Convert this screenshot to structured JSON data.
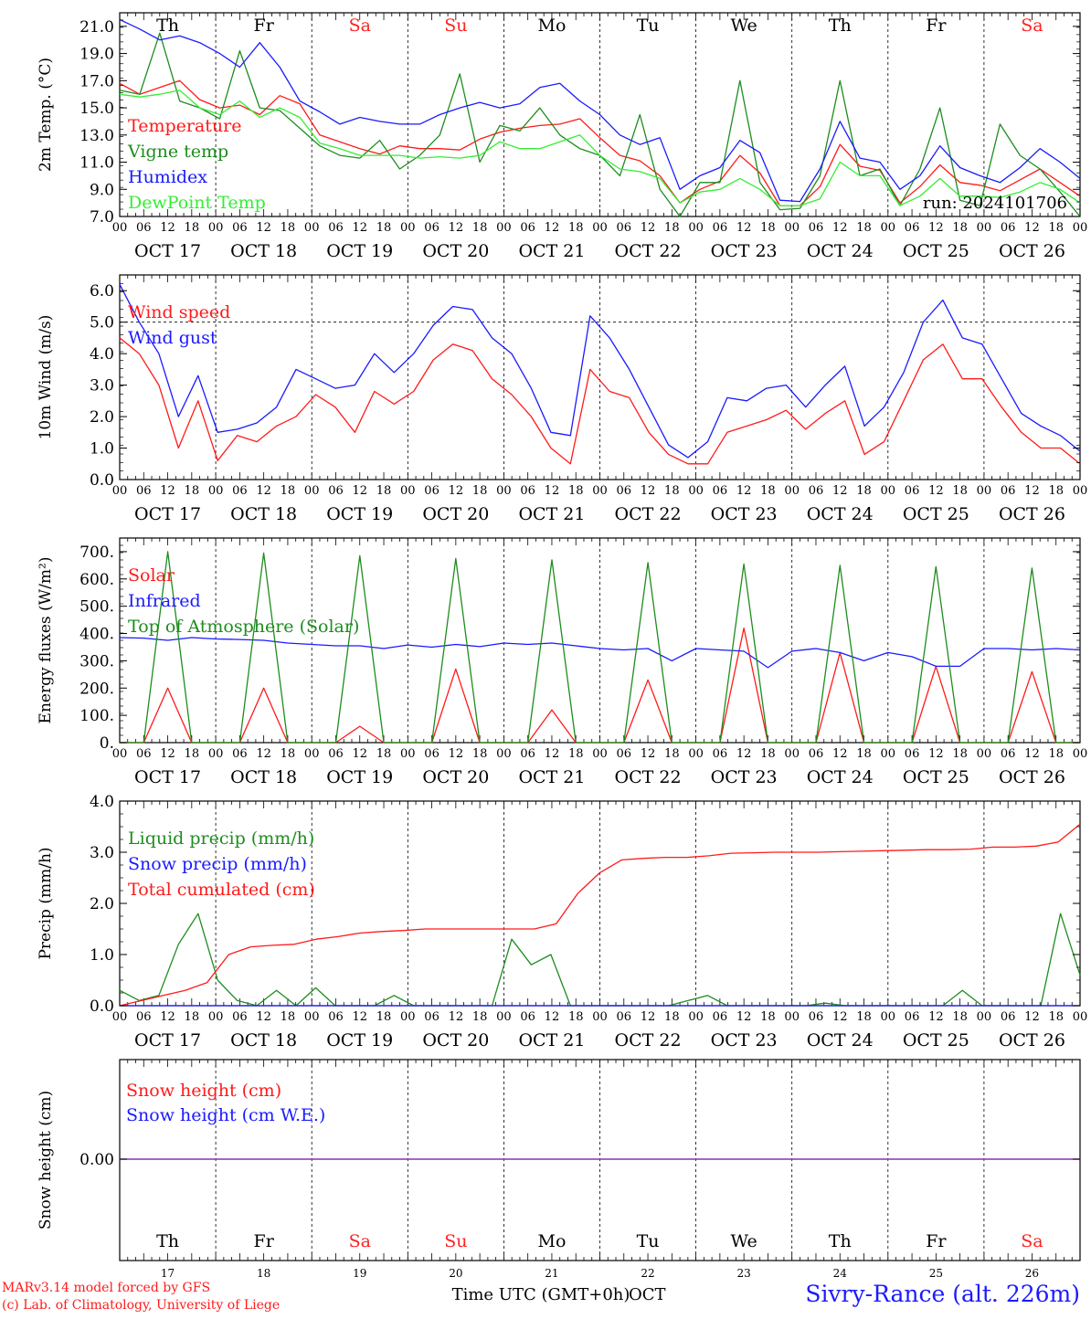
{
  "days": {
    "day_names": [
      "Th",
      "Fr",
      "Sa",
      "Su",
      "Mo",
      "Tu",
      "We",
      "Th",
      "Fr",
      "Sa"
    ],
    "weekend_flags": [
      false,
      false,
      true,
      true,
      false,
      false,
      false,
      false,
      false,
      true
    ],
    "date_labels": [
      "OCT 17",
      "OCT 18",
      "OCT 19",
      "OCT 20",
      "OCT 21",
      "OCT 22",
      "OCT 23",
      "OCT 24",
      "OCT 25",
      "OCT 26"
    ],
    "day_numbers": [
      "17",
      "18",
      "19",
      "20",
      "21",
      "22",
      "23",
      "24",
      "25",
      "26"
    ],
    "hour_labels": [
      "00",
      "06",
      "12",
      "18"
    ],
    "final_hour_label": "00"
  },
  "colors": {
    "red": "#ff1a1a",
    "green": "#1e8c1e",
    "blue": "#1a1aff",
    "lightgreen": "#33ee33",
    "purple": "#8833aa",
    "weekend": "#ff2222",
    "text": "#000000"
  },
  "chart_data": [
    {
      "type": "line",
      "id": "temp",
      "ylabel": "2m Temp. (°C)",
      "ylim": [
        7.0,
        22.0
      ],
      "yticks": [
        "7.0",
        "9.0",
        "11.0",
        "13.0",
        "15.0",
        "17.0",
        "19.0",
        "21.0"
      ],
      "annotation": "run: 2024101706",
      "x_unit": "hours since OCT 17 00 UTC (every 6 h)",
      "series": [
        {
          "name": "Temperature",
          "color": "#ff1a1a",
          "values": [
            16.8,
            16.0,
            16.5,
            17.0,
            15.6,
            15.0,
            15.2,
            14.5,
            15.9,
            15.3,
            13.0,
            12.5,
            12.0,
            11.6,
            12.2,
            12.0,
            12.0,
            11.9,
            12.7,
            13.2,
            13.5,
            13.7,
            13.8,
            14.2,
            12.8,
            11.5,
            11.1,
            10.0,
            8.0,
            9.0,
            9.6,
            11.5,
            10.2,
            7.8,
            7.8,
            9.2,
            12.3,
            10.7,
            10.4,
            8.0,
            9.2,
            10.8,
            9.5,
            9.3,
            8.9,
            9.7,
            10.5,
            9.5,
            8.5
          ]
        },
        {
          "name": "Vigne temp",
          "color": "#1e8c1e",
          "values": [
            16.3,
            16.0,
            20.5,
            15.5,
            15.0,
            14.2,
            19.2,
            15.0,
            14.8,
            13.5,
            12.2,
            11.5,
            11.3,
            12.6,
            10.5,
            11.5,
            13.0,
            17.5,
            11.0,
            13.7,
            13.3,
            15.0,
            13.0,
            12.0,
            11.5,
            10.0,
            14.5,
            9.0,
            6.5,
            9.5,
            9.5,
            17.0,
            9.5,
            7.5,
            7.6,
            10.0,
            17.0,
            10.0,
            10.5,
            7.8,
            10.5,
            15.0,
            8.2,
            7.8,
            13.8,
            11.5,
            10.5,
            8.8,
            7.0
          ]
        },
        {
          "name": "Humidex",
          "color": "#1a1aff",
          "values": [
            21.5,
            20.8,
            20.0,
            20.3,
            19.8,
            19.0,
            18.0,
            19.8,
            18.0,
            15.5,
            14.7,
            13.8,
            14.3,
            14.0,
            13.8,
            13.8,
            14.5,
            15.0,
            15.4,
            15.0,
            15.3,
            16.5,
            16.8,
            15.5,
            14.5,
            13.0,
            12.3,
            12.8,
            9.0,
            10.0,
            10.6,
            12.6,
            11.7,
            8.2,
            8.1,
            10.5,
            14.0,
            11.3,
            11.0,
            9.0,
            10.0,
            12.2,
            10.6,
            10.0,
            9.5,
            10.6,
            12.0,
            11.0,
            9.8
          ]
        },
        {
          "name": "DewPoint Temp",
          "color": "#33ee33",
          "values": [
            16.0,
            15.8,
            16.0,
            16.3,
            15.0,
            14.5,
            15.5,
            14.3,
            15.0,
            14.3,
            12.4,
            12.0,
            11.5,
            11.5,
            11.5,
            11.3,
            11.4,
            11.3,
            11.5,
            12.5,
            12.0,
            12.0,
            12.5,
            13.0,
            11.5,
            10.5,
            10.3,
            9.8,
            8.0,
            8.8,
            9.0,
            9.8,
            9.0,
            7.8,
            7.8,
            8.3,
            11.0,
            10.0,
            10.0,
            7.8,
            8.5,
            9.8,
            8.5,
            8.5,
            8.4,
            8.8,
            9.5,
            9.0,
            8.0
          ]
        }
      ]
    },
    {
      "type": "line",
      "id": "wind",
      "ylabel": "10m Wind (m/s)",
      "ylim": [
        0.0,
        6.5
      ],
      "yticks": [
        "0.0",
        "1.0",
        "2.0",
        "3.0",
        "4.0",
        "5.0",
        "6.0"
      ],
      "reference_line": 5.0,
      "x_unit": "hours since OCT 17 00 UTC (every 6 h)",
      "series": [
        {
          "name": "Wind speed",
          "color": "#ff1a1a",
          "values": [
            4.5,
            4.0,
            3.0,
            1.0,
            2.5,
            0.6,
            1.4,
            1.2,
            1.7,
            2.0,
            2.7,
            2.3,
            1.5,
            2.8,
            2.4,
            2.8,
            3.8,
            4.3,
            4.1,
            3.2,
            2.7,
            2.0,
            1.0,
            0.5,
            3.5,
            2.8,
            2.6,
            1.5,
            0.8,
            0.5,
            0.5,
            1.5,
            1.7,
            1.9,
            2.2,
            1.6,
            2.1,
            2.5,
            0.8,
            1.2,
            2.5,
            3.8,
            4.3,
            3.2,
            3.2,
            2.3,
            1.5,
            1.0,
            1.0,
            0.5
          ]
        },
        {
          "name": "Wind gust",
          "color": "#1a1aff",
          "values": [
            6.2,
            5.0,
            4.0,
            2.0,
            3.3,
            1.5,
            1.6,
            1.8,
            2.3,
            3.5,
            3.2,
            2.9,
            3.0,
            4.0,
            3.4,
            4.0,
            4.9,
            5.5,
            5.4,
            4.5,
            4.0,
            2.9,
            1.5,
            1.4,
            5.2,
            4.5,
            3.5,
            2.3,
            1.1,
            0.7,
            1.2,
            2.6,
            2.5,
            2.9,
            3.0,
            2.3,
            3.0,
            3.6,
            1.7,
            2.3,
            3.4,
            5.0,
            5.7,
            4.5,
            4.3,
            3.2,
            2.1,
            1.7,
            1.4,
            0.9
          ]
        }
      ]
    },
    {
      "type": "line",
      "id": "energy",
      "ylabel": "Energy fluxes (W/m²)",
      "ylim": [
        0,
        750
      ],
      "yticks": [
        "0.",
        "100.",
        "200.",
        "300.",
        "400.",
        "500.",
        "600.",
        "700."
      ],
      "x_unit": "hours since OCT 17 00 UTC (every 6 h)",
      "series": [
        {
          "name": "Solar",
          "color": "#ff1a1a",
          "values": [
            0,
            0,
            200,
            0,
            0,
            0,
            200,
            0,
            0,
            0,
            60,
            0,
            0,
            0,
            270,
            0,
            0,
            0,
            120,
            0,
            0,
            0,
            230,
            0,
            0,
            0,
            420,
            0,
            0,
            0,
            330,
            0,
            0,
            0,
            280,
            0,
            0,
            0,
            260,
            0,
            0
          ]
        },
        {
          "name": "Infrared",
          "color": "#1a1aff",
          "values": [
            385,
            383,
            375,
            385,
            380,
            378,
            375,
            365,
            360,
            355,
            355,
            345,
            358,
            350,
            360,
            352,
            365,
            360,
            365,
            355,
            345,
            340,
            345,
            300,
            345,
            340,
            335,
            275,
            335,
            345,
            330,
            300,
            330,
            315,
            280,
            280,
            345,
            345,
            340,
            345,
            340
          ]
        },
        {
          "name": "Top of Atmosphere (Solar)",
          "color": "#1e8c1e",
          "values": [
            0,
            0,
            700,
            0,
            0,
            0,
            695,
            0,
            0,
            0,
            685,
            0,
            0,
            0,
            675,
            0,
            0,
            0,
            670,
            0,
            0,
            0,
            660,
            0,
            0,
            0,
            655,
            0,
            0,
            0,
            650,
            0,
            0,
            0,
            645,
            0,
            0,
            0,
            640,
            0,
            0
          ]
        }
      ]
    },
    {
      "type": "line",
      "id": "precip",
      "ylabel": "Precip (mm/h)",
      "ylim": [
        0.0,
        4.0
      ],
      "yticks": [
        "0.0",
        "1.0",
        "2.0",
        "3.0",
        "4.0"
      ],
      "x_unit": "hours since OCT 17 00 UTC (every 6 h)",
      "series": [
        {
          "name": "Liquid precip (mm/h)",
          "color": "#1e8c1e",
          "values": [
            0.3,
            0.1,
            0.2,
            1.2,
            1.8,
            0.5,
            0.1,
            0.0,
            0.3,
            0.0,
            0.35,
            0.0,
            0.0,
            0.0,
            0.2,
            0.0,
            0.0,
            0.0,
            0.0,
            0.0,
            1.3,
            0.8,
            1.0,
            0.0,
            0.0,
            0.0,
            0.0,
            0.0,
            0.0,
            0.1,
            0.2,
            0.0,
            0.0,
            0.0,
            0.0,
            0.0,
            0.05,
            0.0,
            0.0,
            0.0,
            0.0,
            0.0,
            0.0,
            0.3,
            0.0,
            0.0,
            0.0,
            0.0,
            1.8,
            0.6
          ]
        },
        {
          "name": "Snow precip (mm/h)",
          "color": "#1a1aff",
          "values": [
            0.0,
            0.0,
            0.0,
            0.0,
            0.0,
            0.0,
            0.0,
            0.0,
            0.0,
            0.0,
            0.0,
            0.0,
            0.0,
            0.0,
            0.0,
            0.0,
            0.0,
            0.0,
            0.0,
            0.0,
            0.0,
            0.0,
            0.0,
            0.0,
            0.0,
            0.0,
            0.0,
            0.0,
            0.0,
            0.0,
            0.0,
            0.0,
            0.0,
            0.0,
            0.0,
            0.0,
            0.0,
            0.0,
            0.0,
            0.0,
            0.0,
            0.0,
            0.0,
            0.0,
            0.0,
            0.0,
            0.0,
            0.0,
            0.0,
            0.0
          ]
        },
        {
          "name": "Total cumulated (cm)",
          "color": "#ff1a1a",
          "values": [
            0.0,
            0.1,
            0.2,
            0.3,
            0.45,
            1.0,
            1.15,
            1.18,
            1.2,
            1.3,
            1.35,
            1.42,
            1.45,
            1.47,
            1.5,
            1.5,
            1.5,
            1.5,
            1.5,
            1.5,
            1.6,
            2.2,
            2.6,
            2.85,
            2.88,
            2.9,
            2.9,
            2.93,
            2.98,
            2.99,
            3.0,
            3.0,
            3.0,
            3.01,
            3.02,
            3.03,
            3.04,
            3.05,
            3.05,
            3.06,
            3.1,
            3.1,
            3.12,
            3.2,
            3.55
          ]
        }
      ]
    },
    {
      "type": "line",
      "id": "snow",
      "ylabel": "Snow height (cm)",
      "yticks": [
        "0.00"
      ],
      "xlabel": "Time UTC (GMT+0h)",
      "xlabel_suffix": "OCT",
      "series": [
        {
          "name": "Snow height (cm)",
          "color": "#ff1a1a",
          "values": [
            0.0,
            0.0
          ]
        },
        {
          "name": "Snow height (cm W.E.)",
          "color": "#1a1aff",
          "values": [
            0.0,
            0.0
          ]
        }
      ]
    }
  ],
  "footer": {
    "credit_line1": "MARv3.14 model forced by GFS",
    "credit_line2": "(c) Lab. of Climatology, University of Liege",
    "station": "Sivry-Rance (alt. 226m)"
  }
}
